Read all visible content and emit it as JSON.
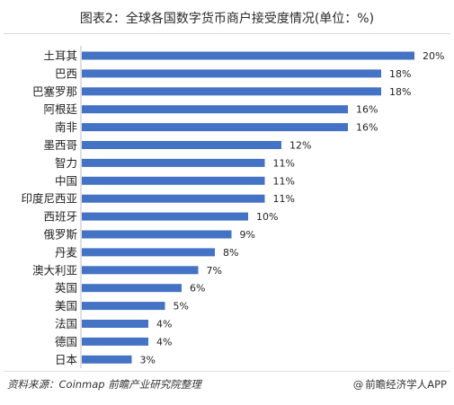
{
  "title": "图表2：全球各国数字货币商户接受度情况(单位：%)",
  "source": "资料来源：Coinmap 前瞻产业研究院整理",
  "brand": {
    "at_symbol": "@",
    "text": "前瞻经济学人APP"
  },
  "colors": {
    "bar": "#4472c4",
    "label": "#222222",
    "axis": "#bfbfbf"
  },
  "chart_data": {
    "type": "bar",
    "orientation": "horizontal",
    "title": "图表2：全球各国数字货币商户接受度情况(单位：%)",
    "unit": "%",
    "categories": [
      "土耳其",
      "巴西",
      "巴塞罗那",
      "阿根廷",
      "南非",
      "墨西哥",
      "智力",
      "中国",
      "印度尼西亚",
      "西班牙",
      "俄罗斯",
      "丹麦",
      "澳大利亚",
      "英国",
      "美国",
      "法国",
      "德国",
      "日本"
    ],
    "values": [
      20,
      18,
      18,
      16,
      16,
      12,
      11,
      11,
      11,
      10,
      9,
      8,
      7,
      6,
      5,
      4,
      4,
      3
    ],
    "value_labels": [
      "20%",
      "18%",
      "18%",
      "16%",
      "16%",
      "12%",
      "11%",
      "11%",
      "11%",
      "10%",
      "9%",
      "8%",
      "7%",
      "6%",
      "5%",
      "4%",
      "4%",
      "3%"
    ],
    "xlim": [
      0,
      20
    ],
    "grid": false,
    "legend": "none"
  }
}
